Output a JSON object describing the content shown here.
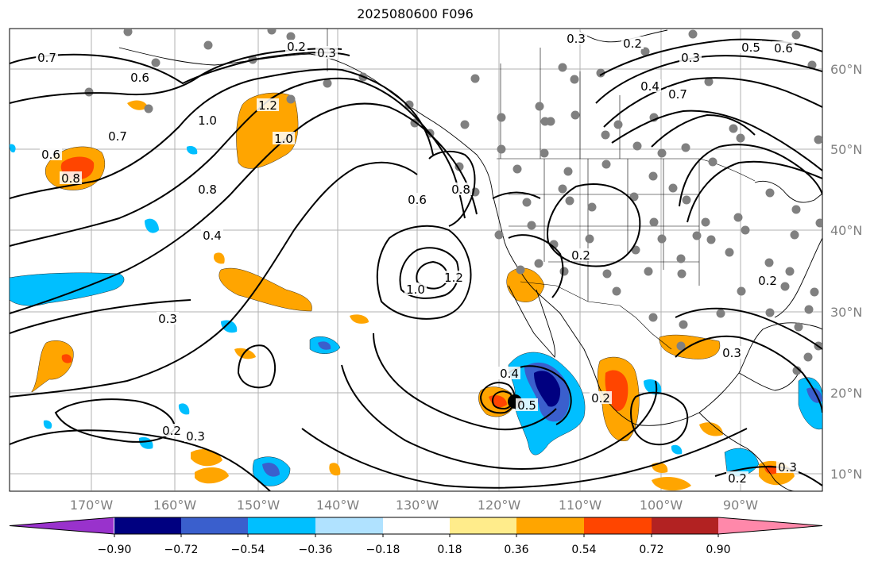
{
  "title": "2025080600 F096",
  "map": {
    "lat_ticks": [
      "60°N",
      "50°N",
      "40°N",
      "30°N",
      "20°N",
      "10°N"
    ],
    "lon_ticks": [
      "170°W",
      "160°W",
      "150°W",
      "140°W",
      "130°W",
      "120°W",
      "110°W",
      "100°W",
      "90°W"
    ],
    "contour_labels": [
      "0.7",
      "0.2",
      "0.3",
      "0.3",
      "0.2",
      "0.3",
      "0.5",
      "0.6",
      "0.4",
      "0.7",
      "0.6",
      "1.0",
      "1.2",
      "1.0",
      "0.7",
      "0.6",
      "0.8",
      "0.8",
      "0.4",
      "0.6",
      "0.8",
      "1.0",
      "1.2",
      "0.2",
      "0.3",
      "0.2",
      "0.3",
      "0.4",
      "0.5",
      "0.2",
      "0.3",
      "0.2",
      "0.2",
      "0.3"
    ],
    "colors": {
      "land_outline": "#000000",
      "grid": "#808080",
      "station_dot": "#808080",
      "storm_center": "#000000"
    }
  },
  "colorbar": {
    "ticks": [
      "−0.90",
      "−0.72",
      "−0.54",
      "−0.36",
      "−0.18",
      "0.18",
      "0.36",
      "0.54",
      "0.72",
      "0.90"
    ],
    "bins": [
      "#9932cc",
      "#000080",
      "#3a5fcd",
      "#00bfff",
      "#b0e2ff",
      "#ffffff",
      "#ffec8b",
      "#ffa500",
      "#ff4500",
      "#b22222",
      "#ff88aa"
    ]
  }
}
